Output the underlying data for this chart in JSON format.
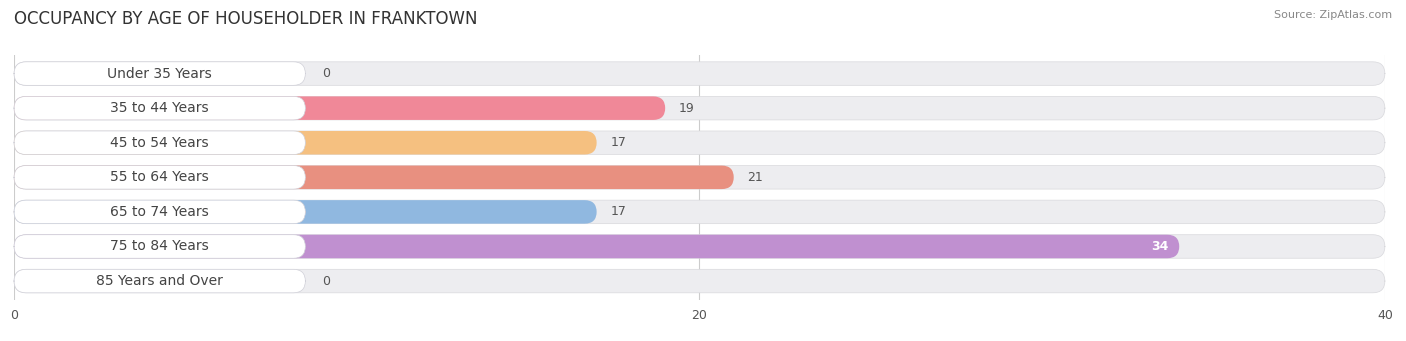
{
  "title": "OCCUPANCY BY AGE OF HOUSEHOLDER IN FRANKTOWN",
  "source": "Source: ZipAtlas.com",
  "categories": [
    "Under 35 Years",
    "35 to 44 Years",
    "45 to 54 Years",
    "55 to 64 Years",
    "65 to 74 Years",
    "75 to 84 Years",
    "85 Years and Over"
  ],
  "values": [
    0,
    19,
    17,
    21,
    17,
    34,
    0
  ],
  "bar_colors": [
    "#b0b0e0",
    "#f08898",
    "#f5c080",
    "#e89080",
    "#90b8e0",
    "#c090d0",
    "#80d0d0"
  ],
  "xlim": [
    0,
    40
  ],
  "xticks": [
    0,
    20,
    40
  ],
  "bg_color": "#ffffff",
  "bar_bg_color": "#ededf0",
  "title_fontsize": 12,
  "label_fontsize": 10,
  "value_fontsize": 9,
  "source_fontsize": 8
}
